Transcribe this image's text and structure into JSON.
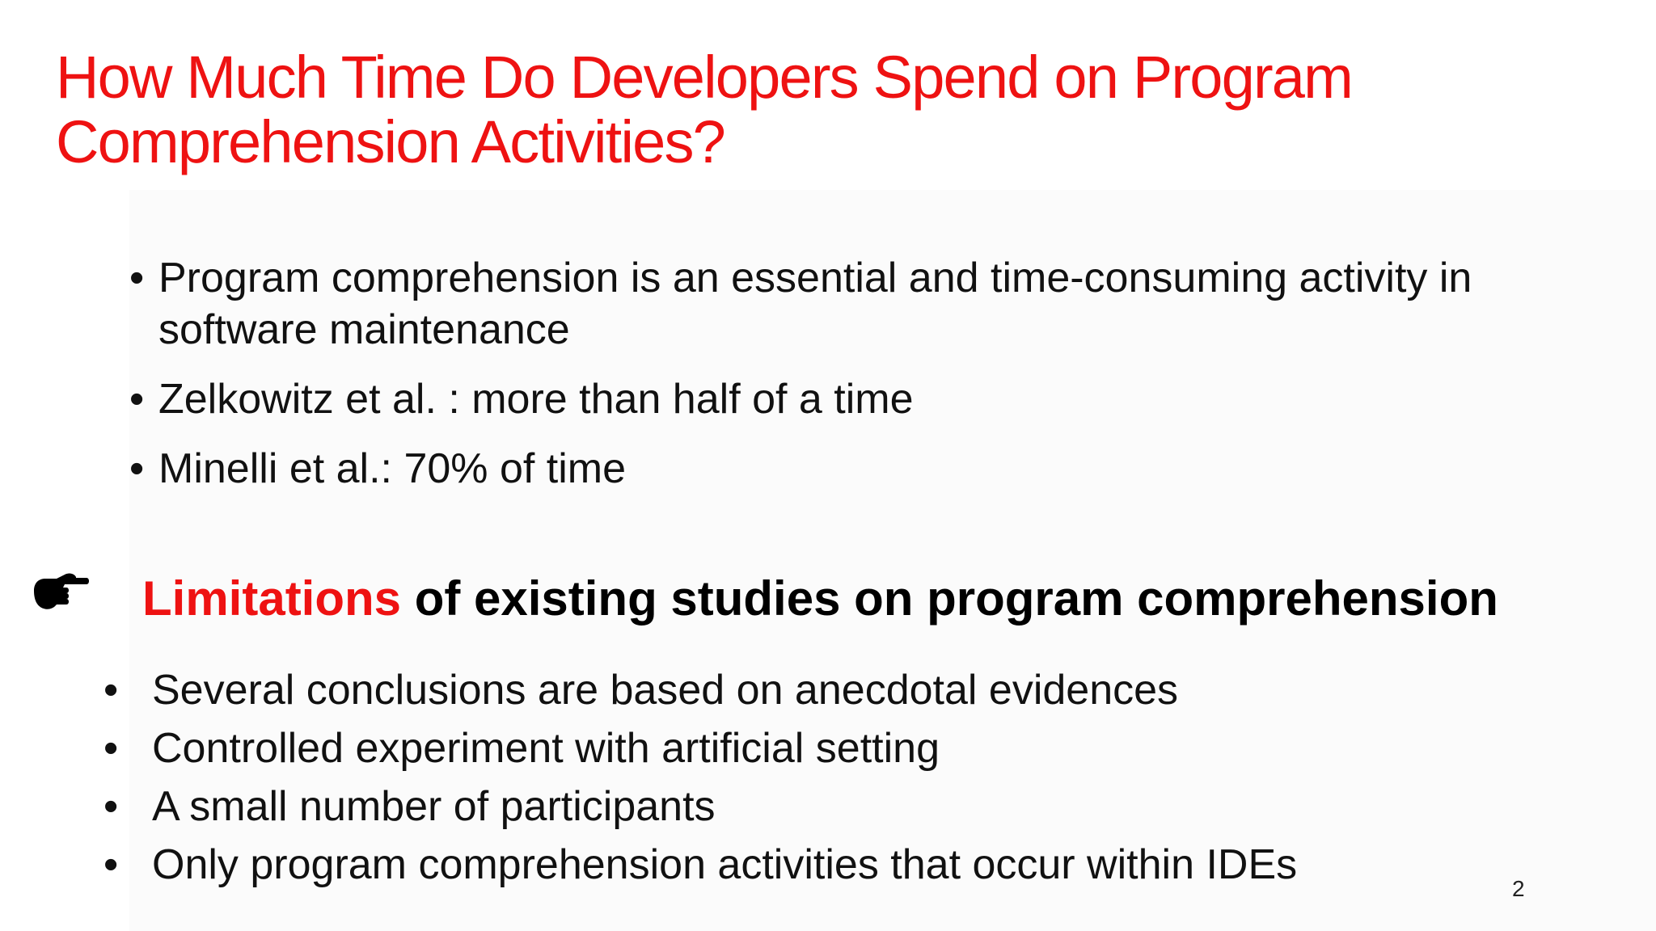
{
  "slide": {
    "title_lines": [
      "How Much Time Do Developers Spend on Program",
      "Comprehension Activities?"
    ],
    "bullets_top": [
      "Program comprehension is an essential and time-consuming activity in software maintenance",
      "Zelkowitz et al. : more than half of a time",
      "Minelli et al.: 70% of time"
    ],
    "callout": {
      "icon": "pointing-hand-icon",
      "highlight": "Limitations",
      "rest": "of existing studies on program comprehension"
    },
    "bullets_bottom": [
      "Several conclusions are based on anecdotal evidences",
      "Controlled experiment with artificial setting",
      "A small number of participants",
      "Only program comprehension activities that occur within IDEs"
    ],
    "page_number": "2",
    "colors": {
      "title": "#ee1212",
      "highlight": "#ee1212",
      "text": "#111111"
    },
    "bullet_glyph": "•"
  }
}
